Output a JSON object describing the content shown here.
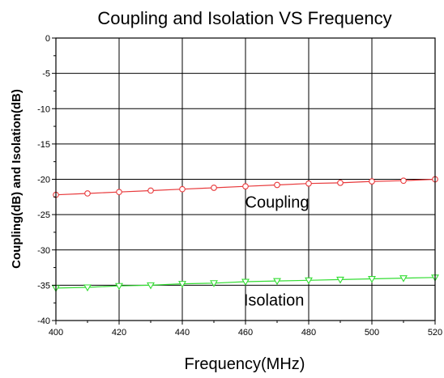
{
  "chart_data": {
    "type": "line",
    "title": "Coupling and Isolation VS Frequency",
    "xlabel": "Frequency(MHz)",
    "ylabel": "Coupling(dB) and Isolation(dB)",
    "xlim": [
      400,
      520
    ],
    "ylim": [
      -40,
      0
    ],
    "xticks": [
      400,
      420,
      440,
      460,
      480,
      500,
      520
    ],
    "yticks": [
      0,
      -5,
      -10,
      -15,
      -20,
      -25,
      -30,
      -35,
      -40
    ],
    "grid": true,
    "legend": "none",
    "x": [
      400,
      410,
      420,
      430,
      440,
      450,
      460,
      470,
      480,
      490,
      500,
      510,
      520
    ],
    "series": [
      {
        "color": "#e8393b",
        "marker": "circle",
        "values": [
          -22.2,
          -22.0,
          -21.8,
          -21.6,
          -21.4,
          -21.2,
          -21.0,
          -20.8,
          -20.6,
          -20.5,
          -20.3,
          -20.2,
          -20.0
        ]
      },
      {
        "color": "#33dd33",
        "marker": "triangle-down",
        "values": [
          -35.4,
          -35.3,
          -35.1,
          -35.0,
          -34.8,
          -34.7,
          -34.5,
          -34.4,
          -34.3,
          -34.2,
          -34.1,
          -34.0,
          -33.9
        ]
      }
    ],
    "annotations": [
      {
        "text": "Coupling",
        "x": 470,
        "y": -24
      },
      {
        "text": "Isolation",
        "x": 469,
        "y": -37.9
      }
    ]
  }
}
